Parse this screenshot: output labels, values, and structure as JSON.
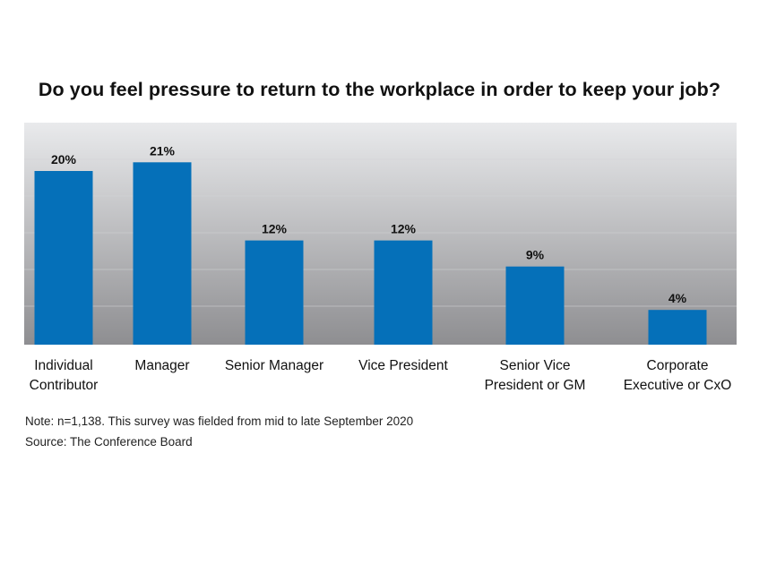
{
  "chart_data": {
    "type": "bar",
    "title": "Do you feel pressure to return to the workplace in order to keep your job?",
    "categories": [
      "Individual\nContributor",
      "Manager",
      "Senior Manager",
      "Vice President",
      "Senior Vice\nPresident or GM",
      "Corporate\nExecutive or CxO"
    ],
    "values": [
      20,
      21,
      12,
      12,
      9,
      4
    ],
    "value_labels": [
      "20%",
      "21%",
      "12%",
      "12%",
      "9%",
      "4%"
    ],
    "value_unit": "%",
    "ylim": [
      0,
      24
    ],
    "grid": false,
    "legend": "none",
    "colors": {
      "bar": "#0570B9",
      "plot_top": "#E9EAEC",
      "plot_bottom": "#8E8E91",
      "band_line": "#D2D3D6"
    }
  },
  "notes": {
    "note": "Note: n=1,138. This survey was fielded from mid to late September 2020",
    "source": "Source: The Conference Board"
  }
}
